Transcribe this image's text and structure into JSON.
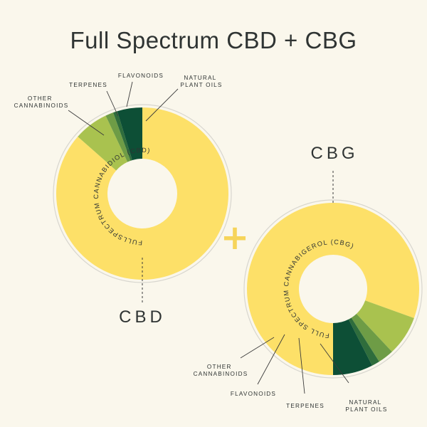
{
  "title": "Full Spectrum CBD + CBG",
  "plus_sign": "+",
  "colors": {
    "background": "#faf7ec",
    "main_yellow": "#fde068",
    "other_cannabinoids": "#a9c24f",
    "terpenes": "#6e9c46",
    "flavonoids": "#2f6d3c",
    "natural_plant_oils": "#0d4f36",
    "plus": "#f6d45a"
  },
  "chart_data": [
    {
      "type": "pie",
      "variant": "donut",
      "label": "CBD",
      "ring_text": "FULLSPECTRUM CANNABIDIOL (CBD)",
      "slices": [
        {
          "name": "Fullspectrum Cannabidiol (CBD)",
          "value": 86.5,
          "color": "#fde068"
        },
        {
          "name": "OTHER CANNABINOIDS",
          "value": 6.5,
          "color": "#a9c24f"
        },
        {
          "name": "TERPENES",
          "value": 1.5,
          "color": "#6e9c46"
        },
        {
          "name": "FLAVONOIDS",
          "value": 0.8,
          "color": "#2f6d3c"
        },
        {
          "name": "NATURAL PLANT OILS",
          "value": 4.7,
          "color": "#0d4f36"
        }
      ],
      "callouts": [
        {
          "lines": [
            "OTHER",
            "CANNABINOIDS"
          ]
        },
        {
          "lines": [
            "TERPENES"
          ]
        },
        {
          "lines": [
            "FLAVONOIDS"
          ]
        },
        {
          "lines": [
            "NATURAL",
            "PLANT OILS"
          ]
        }
      ]
    },
    {
      "type": "pie",
      "variant": "donut",
      "label": "CBG",
      "ring_text": "FULL SPECTRUM CANNABIGEROL (CBG)",
      "slices": [
        {
          "name": "Full Spectrum Cannabigerol (CBG)",
          "value": 80.5,
          "color": "#fde068"
        },
        {
          "name": "NATURAL PLANT OILS",
          "value": 7.5,
          "color": "#a9c24f"
        },
        {
          "name": "TERPENES",
          "value": 3.0,
          "color": "#6e9c46"
        },
        {
          "name": "FLAVONOIDS",
          "value": 1.5,
          "color": "#2f6d3c"
        },
        {
          "name": "OTHER CANNABINOIDS",
          "value": 7.5,
          "color": "#0d4f36"
        }
      ],
      "callouts": [
        {
          "lines": [
            "OTHER",
            "CANNABINOIDS"
          ]
        },
        {
          "lines": [
            "FLAVONOIDS"
          ]
        },
        {
          "lines": [
            "TERPENES"
          ]
        },
        {
          "lines": [
            "NATURAL",
            "PLANT OILS"
          ]
        }
      ]
    }
  ]
}
